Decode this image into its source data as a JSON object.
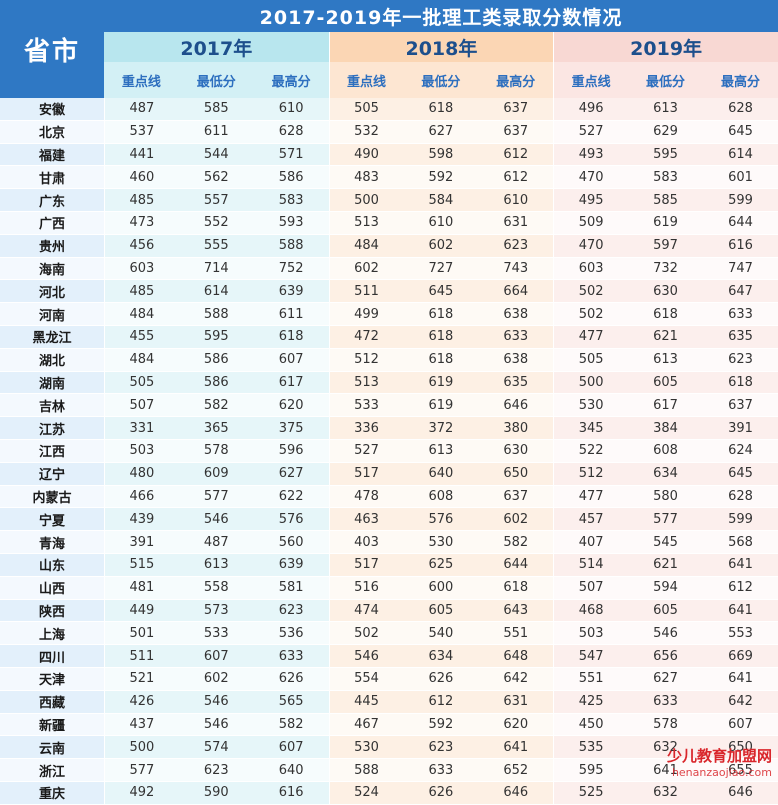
{
  "chart_data": {
    "type": "table",
    "title": "2017-2019年一批理工类录取分数情况",
    "row_header": "省市",
    "years": [
      "2017年",
      "2018年",
      "2019年"
    ],
    "subheaders": [
      "重点线",
      "最低分",
      "最高分"
    ],
    "rows": [
      {
        "province": "安徽",
        "values": [
          487,
          585,
          610,
          505,
          618,
          637,
          496,
          613,
          628
        ]
      },
      {
        "province": "北京",
        "values": [
          537,
          611,
          628,
          532,
          627,
          637,
          527,
          629,
          645
        ]
      },
      {
        "province": "福建",
        "values": [
          441,
          544,
          571,
          490,
          598,
          612,
          493,
          595,
          614
        ]
      },
      {
        "province": "甘肃",
        "values": [
          460,
          562,
          586,
          483,
          592,
          612,
          470,
          583,
          601
        ]
      },
      {
        "province": "广东",
        "values": [
          485,
          557,
          583,
          500,
          584,
          610,
          495,
          585,
          599
        ]
      },
      {
        "province": "广西",
        "values": [
          473,
          552,
          593,
          513,
          610,
          631,
          509,
          619,
          644
        ]
      },
      {
        "province": "贵州",
        "values": [
          456,
          555,
          588,
          484,
          602,
          623,
          470,
          597,
          616
        ]
      },
      {
        "province": "海南",
        "values": [
          603,
          714,
          752,
          602,
          727,
          743,
          603,
          732,
          747
        ]
      },
      {
        "province": "河北",
        "values": [
          485,
          614,
          639,
          511,
          645,
          664,
          502,
          630,
          647
        ]
      },
      {
        "province": "河南",
        "values": [
          484,
          588,
          611,
          499,
          618,
          638,
          502,
          618,
          633
        ]
      },
      {
        "province": "黑龙江",
        "values": [
          455,
          595,
          618,
          472,
          618,
          633,
          477,
          621,
          635
        ]
      },
      {
        "province": "湖北",
        "values": [
          484,
          586,
          607,
          512,
          618,
          638,
          505,
          613,
          623
        ]
      },
      {
        "province": "湖南",
        "values": [
          505,
          586,
          617,
          513,
          619,
          635,
          500,
          605,
          618
        ]
      },
      {
        "province": "吉林",
        "values": [
          507,
          582,
          620,
          533,
          619,
          646,
          530,
          617,
          637
        ]
      },
      {
        "province": "江苏",
        "values": [
          331,
          365,
          375,
          336,
          372,
          380,
          345,
          384,
          391
        ]
      },
      {
        "province": "江西",
        "values": [
          503,
          578,
          596,
          527,
          613,
          630,
          522,
          608,
          624
        ]
      },
      {
        "province": "辽宁",
        "values": [
          480,
          609,
          627,
          517,
          640,
          650,
          512,
          634,
          645
        ]
      },
      {
        "province": "内蒙古",
        "values": [
          466,
          577,
          622,
          478,
          608,
          637,
          477,
          580,
          628
        ]
      },
      {
        "province": "宁夏",
        "values": [
          439,
          546,
          576,
          463,
          576,
          602,
          457,
          577,
          599
        ]
      },
      {
        "province": "青海",
        "values": [
          391,
          487,
          560,
          403,
          530,
          582,
          407,
          545,
          568
        ]
      },
      {
        "province": "山东",
        "values": [
          515,
          613,
          639,
          517,
          625,
          644,
          514,
          621,
          641
        ]
      },
      {
        "province": "山西",
        "values": [
          481,
          558,
          581,
          516,
          600,
          618,
          507,
          594,
          612
        ]
      },
      {
        "province": "陕西",
        "values": [
          449,
          573,
          623,
          474,
          605,
          643,
          468,
          605,
          641
        ]
      },
      {
        "province": "上海",
        "values": [
          501,
          533,
          536,
          502,
          540,
          551,
          503,
          546,
          553
        ]
      },
      {
        "province": "四川",
        "values": [
          511,
          607,
          633,
          546,
          634,
          648,
          547,
          656,
          669
        ]
      },
      {
        "province": "天津",
        "values": [
          521,
          602,
          626,
          554,
          626,
          642,
          551,
          627,
          641
        ]
      },
      {
        "province": "西藏",
        "values": [
          426,
          546,
          565,
          445,
          612,
          631,
          425,
          633,
          642
        ]
      },
      {
        "province": "新疆",
        "values": [
          437,
          546,
          582,
          467,
          592,
          620,
          450,
          578,
          607
        ]
      },
      {
        "province": "云南",
        "values": [
          500,
          574,
          607,
          530,
          623,
          641,
          535,
          632,
          650
        ]
      },
      {
        "province": "浙江",
        "values": [
          577,
          623,
          640,
          588,
          633,
          652,
          595,
          641,
          655
        ]
      },
      {
        "province": "重庆",
        "values": [
          492,
          590,
          616,
          524,
          626,
          646,
          525,
          632,
          646
        ]
      }
    ]
  },
  "watermark": {
    "text": "少儿教育加盟网",
    "url": "henanzaojiao.com"
  }
}
